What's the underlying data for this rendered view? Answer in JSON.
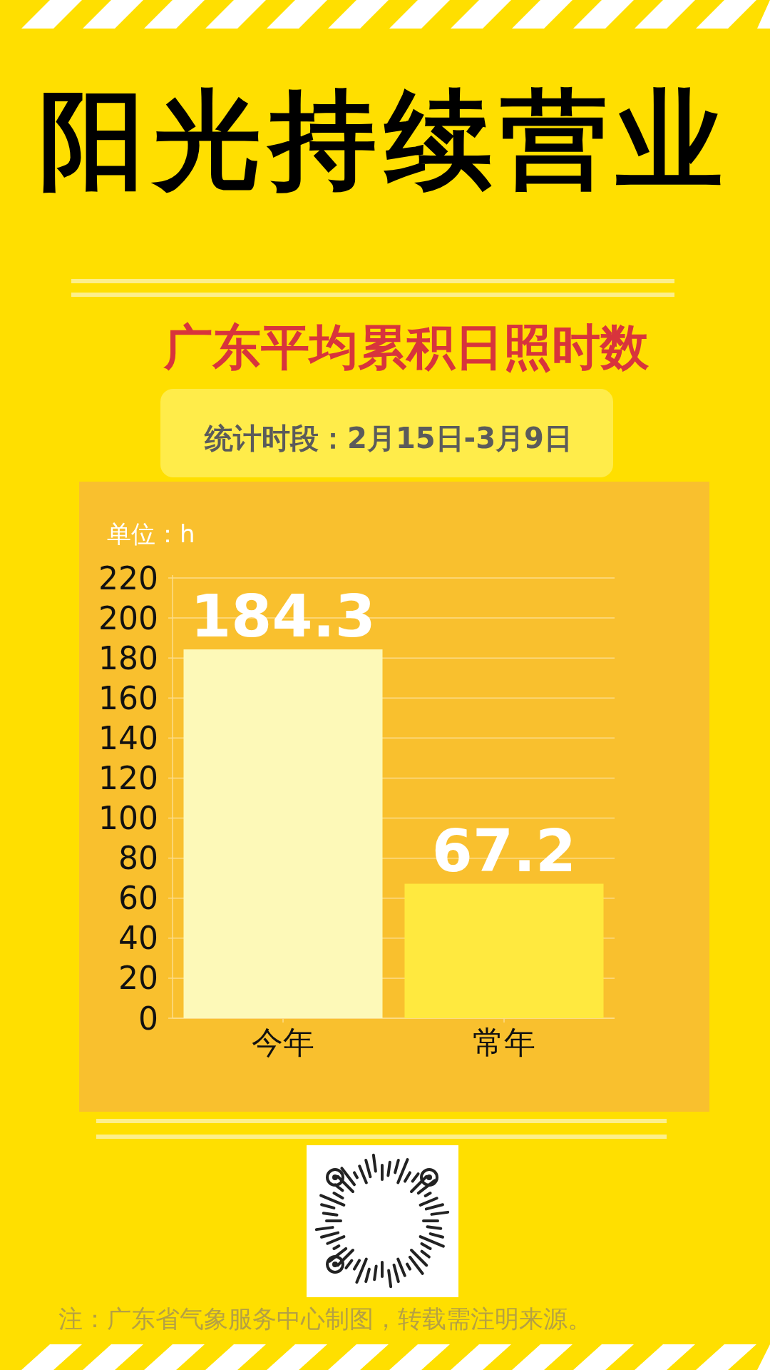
{
  "chart_data": {
    "type": "bar",
    "title": "阳光持续营业",
    "subtitle": "广东平均累积日照时数",
    "ylabel": "单位：h",
    "annotations": [
      "统计时段：2月15日-3月9日",
      "注：广东省气象服务中心制图，转载需注明来源。"
    ],
    "categories": [
      "今年",
      "常年"
    ],
    "values": [
      184.3,
      67.2
    ],
    "colors": [
      "#fdf9b8",
      "#ffe93f"
    ],
    "ylim": [
      0,
      220
    ],
    "yticks": [
      0,
      20,
      40,
      60,
      80,
      100,
      120,
      140,
      160,
      180,
      200,
      220
    ],
    "grid": "y",
    "data_labels": true
  }
}
